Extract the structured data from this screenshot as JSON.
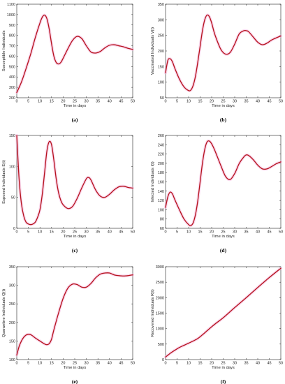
{
  "colors": {
    "curve": "#b5121b",
    "glow": "#f4b6dc",
    "axis": "#222222"
  },
  "chart_data": [
    {
      "type": "line",
      "caption": "(a)",
      "xlabel": "Time in days",
      "ylabel": "Susceptible Individuals",
      "xlim": [
        0,
        50
      ],
      "ylim": [
        200,
        1100
      ],
      "xticks": [
        0,
        5,
        10,
        15,
        20,
        25,
        30,
        35,
        40,
        45,
        50
      ],
      "yticks": [
        200,
        300,
        400,
        500,
        600,
        700,
        800,
        900,
        1000,
        1100
      ],
      "series": [
        {
          "x": [
            0,
            2,
            4,
            6,
            8,
            10,
            11,
            12,
            13,
            14,
            15,
            16,
            17,
            18,
            19,
            20,
            22,
            24,
            26,
            28,
            30,
            32,
            34,
            36,
            38,
            40,
            42,
            44,
            46,
            48,
            50
          ],
          "y": [
            250,
            350,
            480,
            620,
            780,
            920,
            975,
            995,
            960,
            860,
            720,
            600,
            540,
            525,
            540,
            580,
            670,
            750,
            790,
            770,
            700,
            640,
            630,
            645,
            680,
            705,
            710,
            700,
            690,
            675,
            665
          ]
        }
      ]
    },
    {
      "type": "line",
      "caption": "(b)",
      "xlabel": "Time in days",
      "ylabel": "Vaccinated Individuals V(t)",
      "xlim": [
        0,
        50
      ],
      "ylim": [
        50,
        350
      ],
      "xticks": [
        0,
        5,
        10,
        15,
        20,
        25,
        30,
        35,
        40,
        45,
        50
      ],
      "yticks": [
        50,
        100,
        150,
        200,
        250,
        300,
        350
      ],
      "series": [
        {
          "x": [
            0,
            1,
            2,
            3,
            4,
            6,
            8,
            10,
            11,
            12,
            13,
            14,
            15,
            16,
            17,
            18,
            19,
            20,
            21,
            22,
            24,
            26,
            28,
            30,
            32,
            34,
            35,
            36,
            38,
            40,
            42,
            44,
            46,
            48,
            50
          ],
          "y": [
            130,
            170,
            175,
            165,
            145,
            110,
            85,
            73,
            75,
            90,
            120,
            165,
            215,
            265,
            300,
            315,
            310,
            290,
            262,
            240,
            205,
            190,
            195,
            222,
            255,
            265,
            265,
            262,
            245,
            228,
            220,
            225,
            235,
            242,
            248
          ]
        }
      ]
    },
    {
      "type": "line",
      "caption": "(c)",
      "xlabel": "Time in days",
      "ylabel": "Exposed Individuals E(t)",
      "xlim": [
        0,
        50
      ],
      "ylim": [
        0,
        150
      ],
      "xticks": [
        0,
        5,
        10,
        15,
        20,
        25,
        30,
        35,
        40,
        45,
        50
      ],
      "yticks": [
        0,
        50,
        100,
        150
      ],
      "series": [
        {
          "x": [
            0,
            1,
            2,
            3,
            4,
            5,
            6,
            7,
            8,
            9,
            10,
            11,
            12,
            13,
            14,
            15,
            16,
            17,
            18,
            19,
            20,
            22,
            24,
            26,
            28,
            30,
            31,
            32,
            34,
            36,
            38,
            40,
            42,
            44,
            46,
            48,
            50
          ],
          "y": [
            150,
            80,
            40,
            20,
            10,
            7,
            6,
            7,
            10,
            18,
            30,
            55,
            90,
            125,
            140,
            135,
            110,
            80,
            58,
            45,
            38,
            32,
            35,
            48,
            65,
            80,
            82,
            78,
            62,
            52,
            50,
            55,
            62,
            67,
            68,
            66,
            65
          ]
        }
      ]
    },
    {
      "type": "line",
      "caption": "(d)",
      "xlabel": "Time in days",
      "ylabel": "Infected Individuals I(t)",
      "xlim": [
        0,
        50
      ],
      "ylim": [
        60,
        260
      ],
      "xticks": [
        0,
        5,
        10,
        15,
        20,
        25,
        30,
        35,
        40,
        45,
        50
      ],
      "yticks": [
        60,
        80,
        100,
        120,
        140,
        160,
        180,
        200,
        220,
        240,
        260
      ],
      "series": [
        {
          "x": [
            0,
            1,
            2,
            3,
            4,
            6,
            8,
            10,
            11,
            12,
            13,
            14,
            15,
            16,
            17,
            18,
            19,
            20,
            21,
            22,
            24,
            26,
            28,
            30,
            32,
            34,
            35,
            36,
            38,
            40,
            42,
            44,
            46,
            48,
            50
          ],
          "y": [
            105,
            128,
            138,
            134,
            122,
            100,
            80,
            68,
            66,
            72,
            90,
            120,
            160,
            200,
            230,
            246,
            248,
            242,
            232,
            220,
            195,
            172,
            165,
            178,
            200,
            214,
            218,
            217,
            208,
            196,
            188,
            188,
            193,
            199,
            203
          ]
        }
      ]
    },
    {
      "type": "line",
      "caption": "(e)",
      "xlabel": "Time in days",
      "ylabel": "Quarantine Individuals Q(t)",
      "xlim": [
        0,
        50
      ],
      "ylim": [
        100,
        350
      ],
      "xticks": [
        0,
        5,
        10,
        15,
        20,
        25,
        30,
        35,
        40,
        45,
        50
      ],
      "yticks": [
        100,
        150,
        200,
        250,
        300,
        350
      ],
      "series": [
        {
          "x": [
            0,
            1,
            2,
            3,
            4,
            5,
            6,
            7,
            8,
            10,
            12,
            13,
            14,
            15,
            16,
            18,
            20,
            22,
            24,
            26,
            28,
            30,
            32,
            34,
            36,
            38,
            40,
            42,
            44,
            46,
            48,
            50
          ],
          "y": [
            112,
            135,
            150,
            160,
            166,
            168,
            167,
            163,
            158,
            150,
            142,
            140,
            143,
            155,
            180,
            225,
            265,
            292,
            303,
            302,
            295,
            295,
            305,
            320,
            330,
            333,
            333,
            328,
            326,
            325,
            326,
            328
          ]
        }
      ]
    },
    {
      "type": "line",
      "caption": "(f)",
      "xlabel": "Time in days",
      "ylabel": "Recovered Individuals R(t)",
      "xlim": [
        0,
        50
      ],
      "ylim": [
        0,
        3000
      ],
      "xticks": [
        0,
        5,
        10,
        15,
        20,
        25,
        30,
        35,
        40,
        45,
        50
      ],
      "yticks": [
        0,
        500,
        1000,
        1500,
        2000,
        2500,
        3000
      ],
      "series": [
        {
          "x": [
            0,
            2,
            4,
            6,
            8,
            10,
            12,
            14,
            16,
            18,
            20,
            22,
            25,
            30,
            35,
            40,
            45,
            50
          ],
          "y": [
            80,
            200,
            300,
            390,
            460,
            530,
            600,
            680,
            800,
            930,
            1060,
            1180,
            1350,
            1680,
            2000,
            2330,
            2650,
            2950
          ]
        }
      ]
    }
  ]
}
